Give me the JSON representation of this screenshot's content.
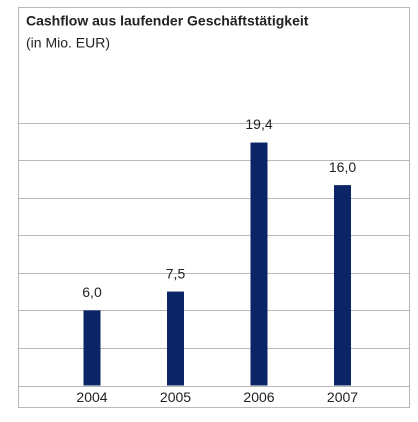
{
  "chart_data": {
    "type": "bar",
    "title": "Cashflow aus laufender Geschäftstätigkeit",
    "subtitle": "(in Mio. EUR)",
    "categories": [
      "2004",
      "2005",
      "2006",
      "2007"
    ],
    "values": [
      6.0,
      7.5,
      19.4,
      16.0
    ],
    "value_labels": [
      "6,0",
      "7,5",
      "19,4",
      "16,0"
    ],
    "color": "#0b2566",
    "ylim": [
      0,
      21
    ],
    "yticks": [
      0,
      3,
      6,
      9,
      12,
      15,
      18,
      21
    ],
    "grid": true
  }
}
